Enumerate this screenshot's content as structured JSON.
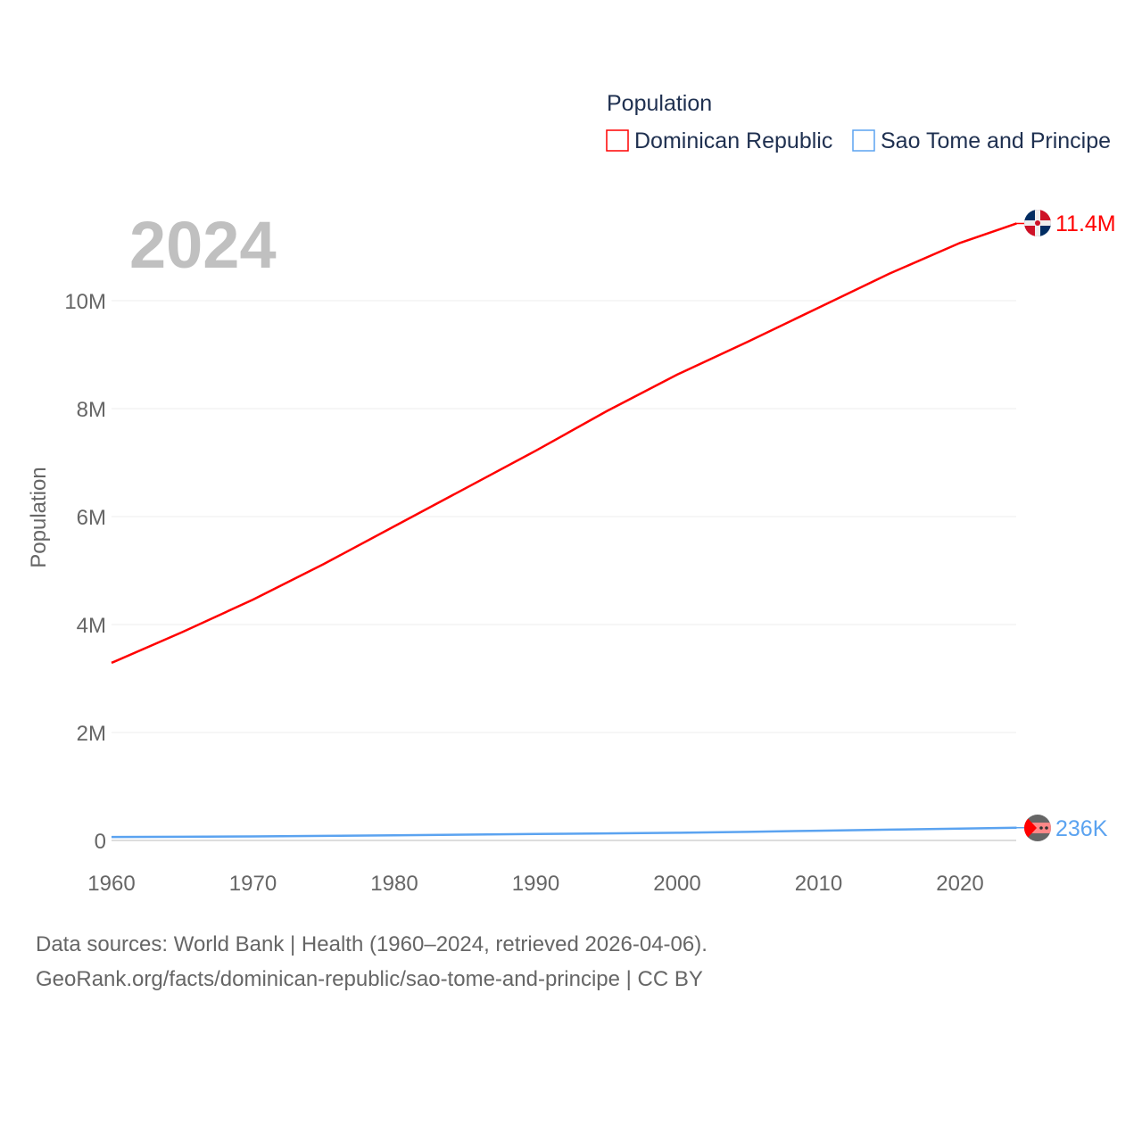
{
  "chart_data": {
    "type": "line",
    "title": "2024",
    "legend_title": "Population",
    "legend_position": "top-right",
    "ylabel": "Population",
    "xlabel": "",
    "xlim": [
      1960,
      2024
    ],
    "ylim": [
      0,
      11800000
    ],
    "grid": true,
    "x_ticks": [
      1960,
      1970,
      1980,
      1990,
      2000,
      2010,
      2020
    ],
    "x_tick_labels": [
      "1960",
      "1970",
      "1980",
      "1990",
      "2000",
      "2010",
      "2020"
    ],
    "y_ticks": [
      0,
      2000000,
      4000000,
      6000000,
      8000000,
      10000000
    ],
    "y_tick_labels": [
      "0",
      "2M",
      "4M",
      "6M",
      "8M",
      "10M"
    ],
    "x": [
      1960,
      1965,
      1970,
      1975,
      1980,
      1985,
      1990,
      1995,
      2000,
      2005,
      2010,
      2015,
      2020,
      2024
    ],
    "series": [
      {
        "name": "Dominican Republic",
        "color": "#ff0000",
        "end_label": "11.4M",
        "values": [
          3290000,
          3860000,
          4460000,
          5120000,
          5820000,
          6520000,
          7220000,
          7950000,
          8630000,
          9240000,
          9870000,
          10500000,
          11070000,
          11430000
        ]
      },
      {
        "name": "Sao Tome and Principe",
        "color": "#5ba3f0",
        "end_label": "236K",
        "values": [
          64000,
          68000,
          74000,
          84000,
          95000,
          107000,
          119000,
          131000,
          142000,
          160000,
          180000,
          200000,
          219000,
          236000
        ]
      }
    ]
  },
  "source_line1": "Data sources: World Bank | Health (1960–2024, retrieved 2026-04-06).",
  "source_line2": "GeoRank.org/facts/dominican-republic/sao-tome-and-principe | CC BY"
}
